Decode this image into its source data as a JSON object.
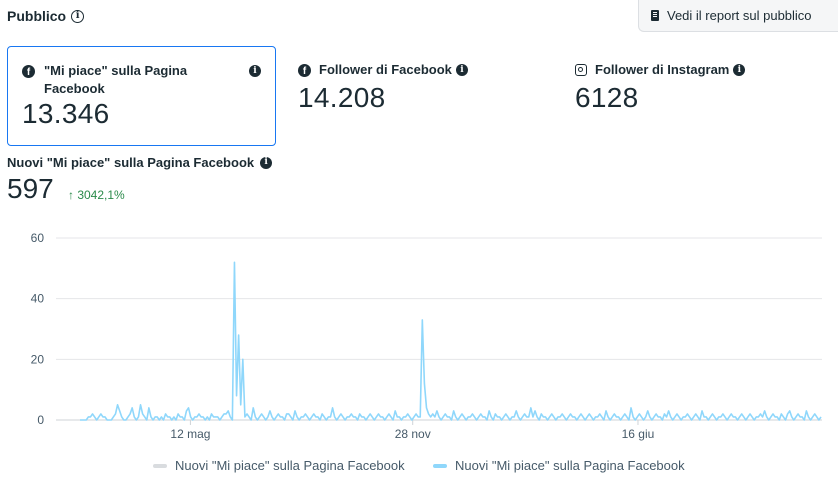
{
  "header": {
    "title": "Pubblico",
    "report_button_label": "Vedi il report sul pubblico"
  },
  "cards": [
    {
      "title_line1": "\"Mi piace\" sulla Pagina",
      "title_line2": "Facebook",
      "value": "13.346",
      "icon": "facebook-icon",
      "selected": true
    },
    {
      "title": "Follower di Facebook",
      "value": "14.208",
      "icon": "facebook-icon"
    },
    {
      "title": "Follower di Instagram",
      "value": "6128",
      "icon": "instagram-icon"
    }
  ],
  "metric": {
    "title": "Nuovi \"Mi piace\" sulla Pagina Facebook",
    "value": "597",
    "change": "↑ 3042,1%"
  },
  "colors": {
    "accent": "#1877f2",
    "series_current": "#8fd7fb",
    "series_previous": "#d9dcdf",
    "positive": "#2a8a4a"
  },
  "chart_data": {
    "type": "line",
    "y_ticks": [
      "60",
      "40",
      "20",
      "0"
    ],
    "ylim": [
      0,
      60
    ],
    "x_ticks": [
      "12 mag",
      "28 nov",
      "16 giu"
    ],
    "grid": true,
    "legend_position": "bottom",
    "series": [
      {
        "name": "Nuovi \"Mi piace\" sulla Pagina Facebook",
        "values": []
      },
      {
        "name": "Nuovi \"Mi piace\" sulla Pagina Facebook",
        "values": [
          0,
          0,
          0,
          0,
          1,
          1,
          2,
          1,
          0,
          1,
          2,
          1,
          1,
          0,
          0,
          0,
          1,
          2,
          5,
          3,
          1,
          0,
          0,
          1,
          2,
          4,
          1,
          0,
          1,
          5,
          2,
          1,
          0,
          4,
          1,
          0,
          1,
          1,
          0,
          1,
          0,
          2,
          1,
          1,
          0,
          1,
          0,
          2,
          1,
          1,
          0,
          3,
          4,
          1,
          0,
          1,
          1,
          2,
          1,
          1,
          0,
          1,
          0,
          2,
          1,
          1,
          1,
          0,
          1,
          2,
          2,
          3,
          1,
          0,
          52,
          8,
          28,
          5,
          20,
          1,
          2,
          1,
          0,
          4,
          1,
          0,
          1,
          2,
          1,
          0,
          1,
          3,
          1,
          0,
          1,
          2,
          1,
          1,
          0,
          2,
          2,
          1,
          0,
          3,
          1,
          0,
          1,
          1,
          2,
          1,
          0,
          1,
          2,
          1,
          1,
          0,
          2,
          1,
          0,
          1,
          1,
          4,
          1,
          0,
          1,
          2,
          1,
          0,
          1,
          1,
          2,
          1,
          1,
          0,
          2,
          1,
          1,
          0,
          1,
          2,
          1,
          0,
          1,
          2,
          1,
          1,
          0,
          1,
          2,
          1,
          0,
          3,
          1,
          1,
          0,
          1,
          1,
          2,
          1,
          0,
          1,
          2,
          1,
          1,
          33,
          12,
          4,
          2,
          1,
          2,
          1,
          3,
          1,
          0,
          1,
          2,
          1,
          1,
          0,
          3,
          1,
          0,
          1,
          2,
          1,
          0,
          1,
          1,
          2,
          1,
          0,
          1,
          2,
          1,
          1,
          0,
          3,
          1,
          0,
          2,
          1,
          1,
          0,
          1,
          2,
          1,
          0,
          1,
          1,
          3,
          1,
          0,
          1,
          2,
          1,
          1,
          4,
          1,
          3,
          1,
          0,
          2,
          1,
          1,
          0,
          1,
          2,
          1,
          0,
          1,
          1,
          2,
          1,
          0,
          1,
          2,
          1,
          1,
          0,
          1,
          2,
          1,
          0,
          1,
          2,
          1,
          0,
          1,
          1,
          2,
          1,
          0,
          3,
          1,
          0,
          1,
          2,
          1,
          1,
          0,
          1,
          2,
          1,
          0,
          4,
          1,
          0,
          1,
          2,
          1,
          0,
          1,
          3,
          1,
          0,
          1,
          2,
          1,
          1,
          0,
          2,
          1,
          3,
          1,
          0,
          1,
          2,
          1,
          0,
          1,
          1,
          2,
          1,
          0,
          1,
          2,
          1,
          0,
          3,
          1,
          1,
          0,
          1,
          2,
          1,
          0,
          1,
          1,
          2,
          1,
          0,
          1,
          2,
          1,
          1,
          0,
          1,
          2,
          1,
          0,
          1,
          2,
          1,
          0,
          1,
          1,
          2,
          1,
          3,
          1,
          0,
          1,
          2,
          1,
          1,
          0,
          2,
          1,
          0,
          2,
          3,
          1,
          0,
          1,
          2,
          1,
          1,
          0,
          3,
          1,
          0,
          1,
          2,
          1,
          0,
          1
        ]
      }
    ]
  }
}
